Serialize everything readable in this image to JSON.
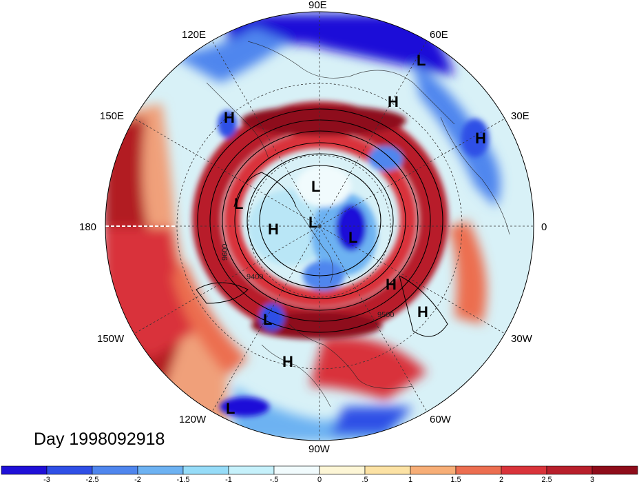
{
  "map": {
    "longitude_labels": [
      "90E",
      "60E",
      "30E",
      "0",
      "30W",
      "60W",
      "90W",
      "120W",
      "150W",
      "180",
      "150E",
      "120E"
    ],
    "contour_labels": [
      "9400",
      "9500",
      "9600"
    ],
    "pressure_systems": [
      {
        "type": "L"
      },
      {
        "type": "H"
      },
      {
        "type": "H"
      },
      {
        "type": "H"
      },
      {
        "type": "L"
      },
      {
        "type": "L"
      },
      {
        "type": "H"
      },
      {
        "type": "L"
      },
      {
        "type": "L"
      },
      {
        "type": "H"
      },
      {
        "type": "H"
      },
      {
        "type": "L"
      },
      {
        "type": "H"
      },
      {
        "type": "L"
      }
    ],
    "day_label": "Day 1998092918"
  },
  "colorbar": {
    "tick_labels": [
      "-3",
      "-2.5",
      "-2",
      "-1.5",
      "-1",
      "-.5",
      "0",
      ".5",
      "1",
      "1.5",
      "2",
      "2.5",
      "3"
    ],
    "colors": [
      "#1f10d8",
      "#2f4fe6",
      "#4f86ee",
      "#6db2f2",
      "#96dcf8",
      "#c6f1fb",
      "#f1fbfd",
      "#fdf6d6",
      "#fce2a4",
      "#f7ae77",
      "#ec6e50",
      "#d9333a",
      "#b81f2b",
      "#8e0c1a"
    ]
  }
}
